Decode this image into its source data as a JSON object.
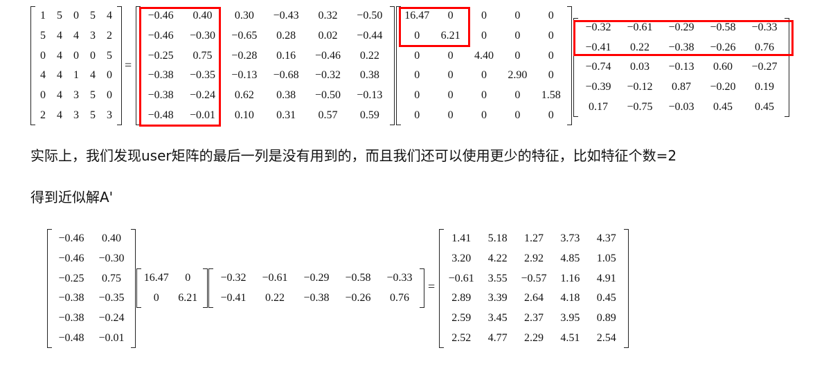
{
  "equation1": {
    "A": [
      [
        "1",
        "5",
        "0",
        "5",
        "4"
      ],
      [
        "5",
        "4",
        "4",
        "3",
        "2"
      ],
      [
        "0",
        "4",
        "0",
        "0",
        "5"
      ],
      [
        "4",
        "4",
        "1",
        "4",
        "0"
      ],
      [
        "0",
        "4",
        "3",
        "5",
        "0"
      ],
      [
        "2",
        "4",
        "3",
        "5",
        "3"
      ]
    ],
    "equals": "=",
    "U": [
      [
        "−0.46",
        "0.40",
        "0.30",
        "−0.43",
        "0.32",
        "−0.50"
      ],
      [
        "−0.46",
        "−0.30",
        "−0.65",
        "0.28",
        "0.02",
        "−0.44"
      ],
      [
        "−0.25",
        "0.75",
        "−0.28",
        "0.16",
        "−0.46",
        "0.22"
      ],
      [
        "−0.38",
        "−0.35",
        "−0.13",
        "−0.68",
        "−0.32",
        "0.38"
      ],
      [
        "−0.38",
        "−0.24",
        "0.62",
        "0.38",
        "−0.50",
        "−0.13"
      ],
      [
        "−0.48",
        "−0.01",
        "0.10",
        "0.31",
        "0.57",
        "0.59"
      ]
    ],
    "S": [
      [
        "16.47",
        "0",
        "0",
        "0",
        "0"
      ],
      [
        "0",
        "6.21",
        "0",
        "0",
        "0"
      ],
      [
        "0",
        "0",
        "4.40",
        "0",
        "0"
      ],
      [
        "0",
        "0",
        "0",
        "2.90",
        "0"
      ],
      [
        "0",
        "0",
        "0",
        "0",
        "1.58"
      ],
      [
        "0",
        "0",
        "0",
        "0",
        "0"
      ]
    ],
    "V": [
      [
        "−0.32",
        "−0.61",
        "−0.29",
        "−0.58",
        "−0.33"
      ],
      [
        "−0.41",
        "0.22",
        "−0.38",
        "−0.26",
        "0.76"
      ],
      [
        "−0.74",
        "0.03",
        "−0.13",
        "0.60",
        "−0.27"
      ],
      [
        "−0.39",
        "−0.12",
        "0.87",
        "−0.20",
        "0.19"
      ],
      [
        "0.17",
        "−0.75",
        "−0.03",
        "0.45",
        "0.45"
      ]
    ],
    "highlight_color": "#ff0000"
  },
  "paragraph1": "实际上，我们发现user矩阵的最后一列是没有用到的，而且我们还可以使用更少的特征，比如特征个数=2",
  "paragraph2": "得到近似解A'",
  "equation2": {
    "U2": [
      [
        "−0.46",
        "0.40"
      ],
      [
        "−0.46",
        "−0.30"
      ],
      [
        "−0.25",
        "0.75"
      ],
      [
        "−0.38",
        "−0.35"
      ],
      [
        "−0.38",
        "−0.24"
      ],
      [
        "−0.48",
        "−0.01"
      ]
    ],
    "S2": [
      [
        "16.47",
        "0"
      ],
      [
        "0",
        "6.21"
      ]
    ],
    "V2": [
      [
        "−0.32",
        "−0.61",
        "−0.29",
        "−0.58",
        "−0.33"
      ],
      [
        "−0.41",
        "0.22",
        "−0.38",
        "−0.26",
        "0.76"
      ]
    ],
    "equals": "=",
    "Aprime": [
      [
        "1.41",
        "5.18",
        "1.27",
        "3.73",
        "4.37"
      ],
      [
        "3.20",
        "4.22",
        "2.92",
        "4.85",
        "1.05"
      ],
      [
        "−0.61",
        "3.55",
        "−0.57",
        "1.16",
        "4.91"
      ],
      [
        "2.89",
        "3.39",
        "2.64",
        "4.18",
        "0.45"
      ],
      [
        "2.59",
        "3.45",
        "2.37",
        "3.95",
        "0.89"
      ],
      [
        "2.52",
        "4.77",
        "2.29",
        "4.51",
        "2.54"
      ]
    ]
  }
}
